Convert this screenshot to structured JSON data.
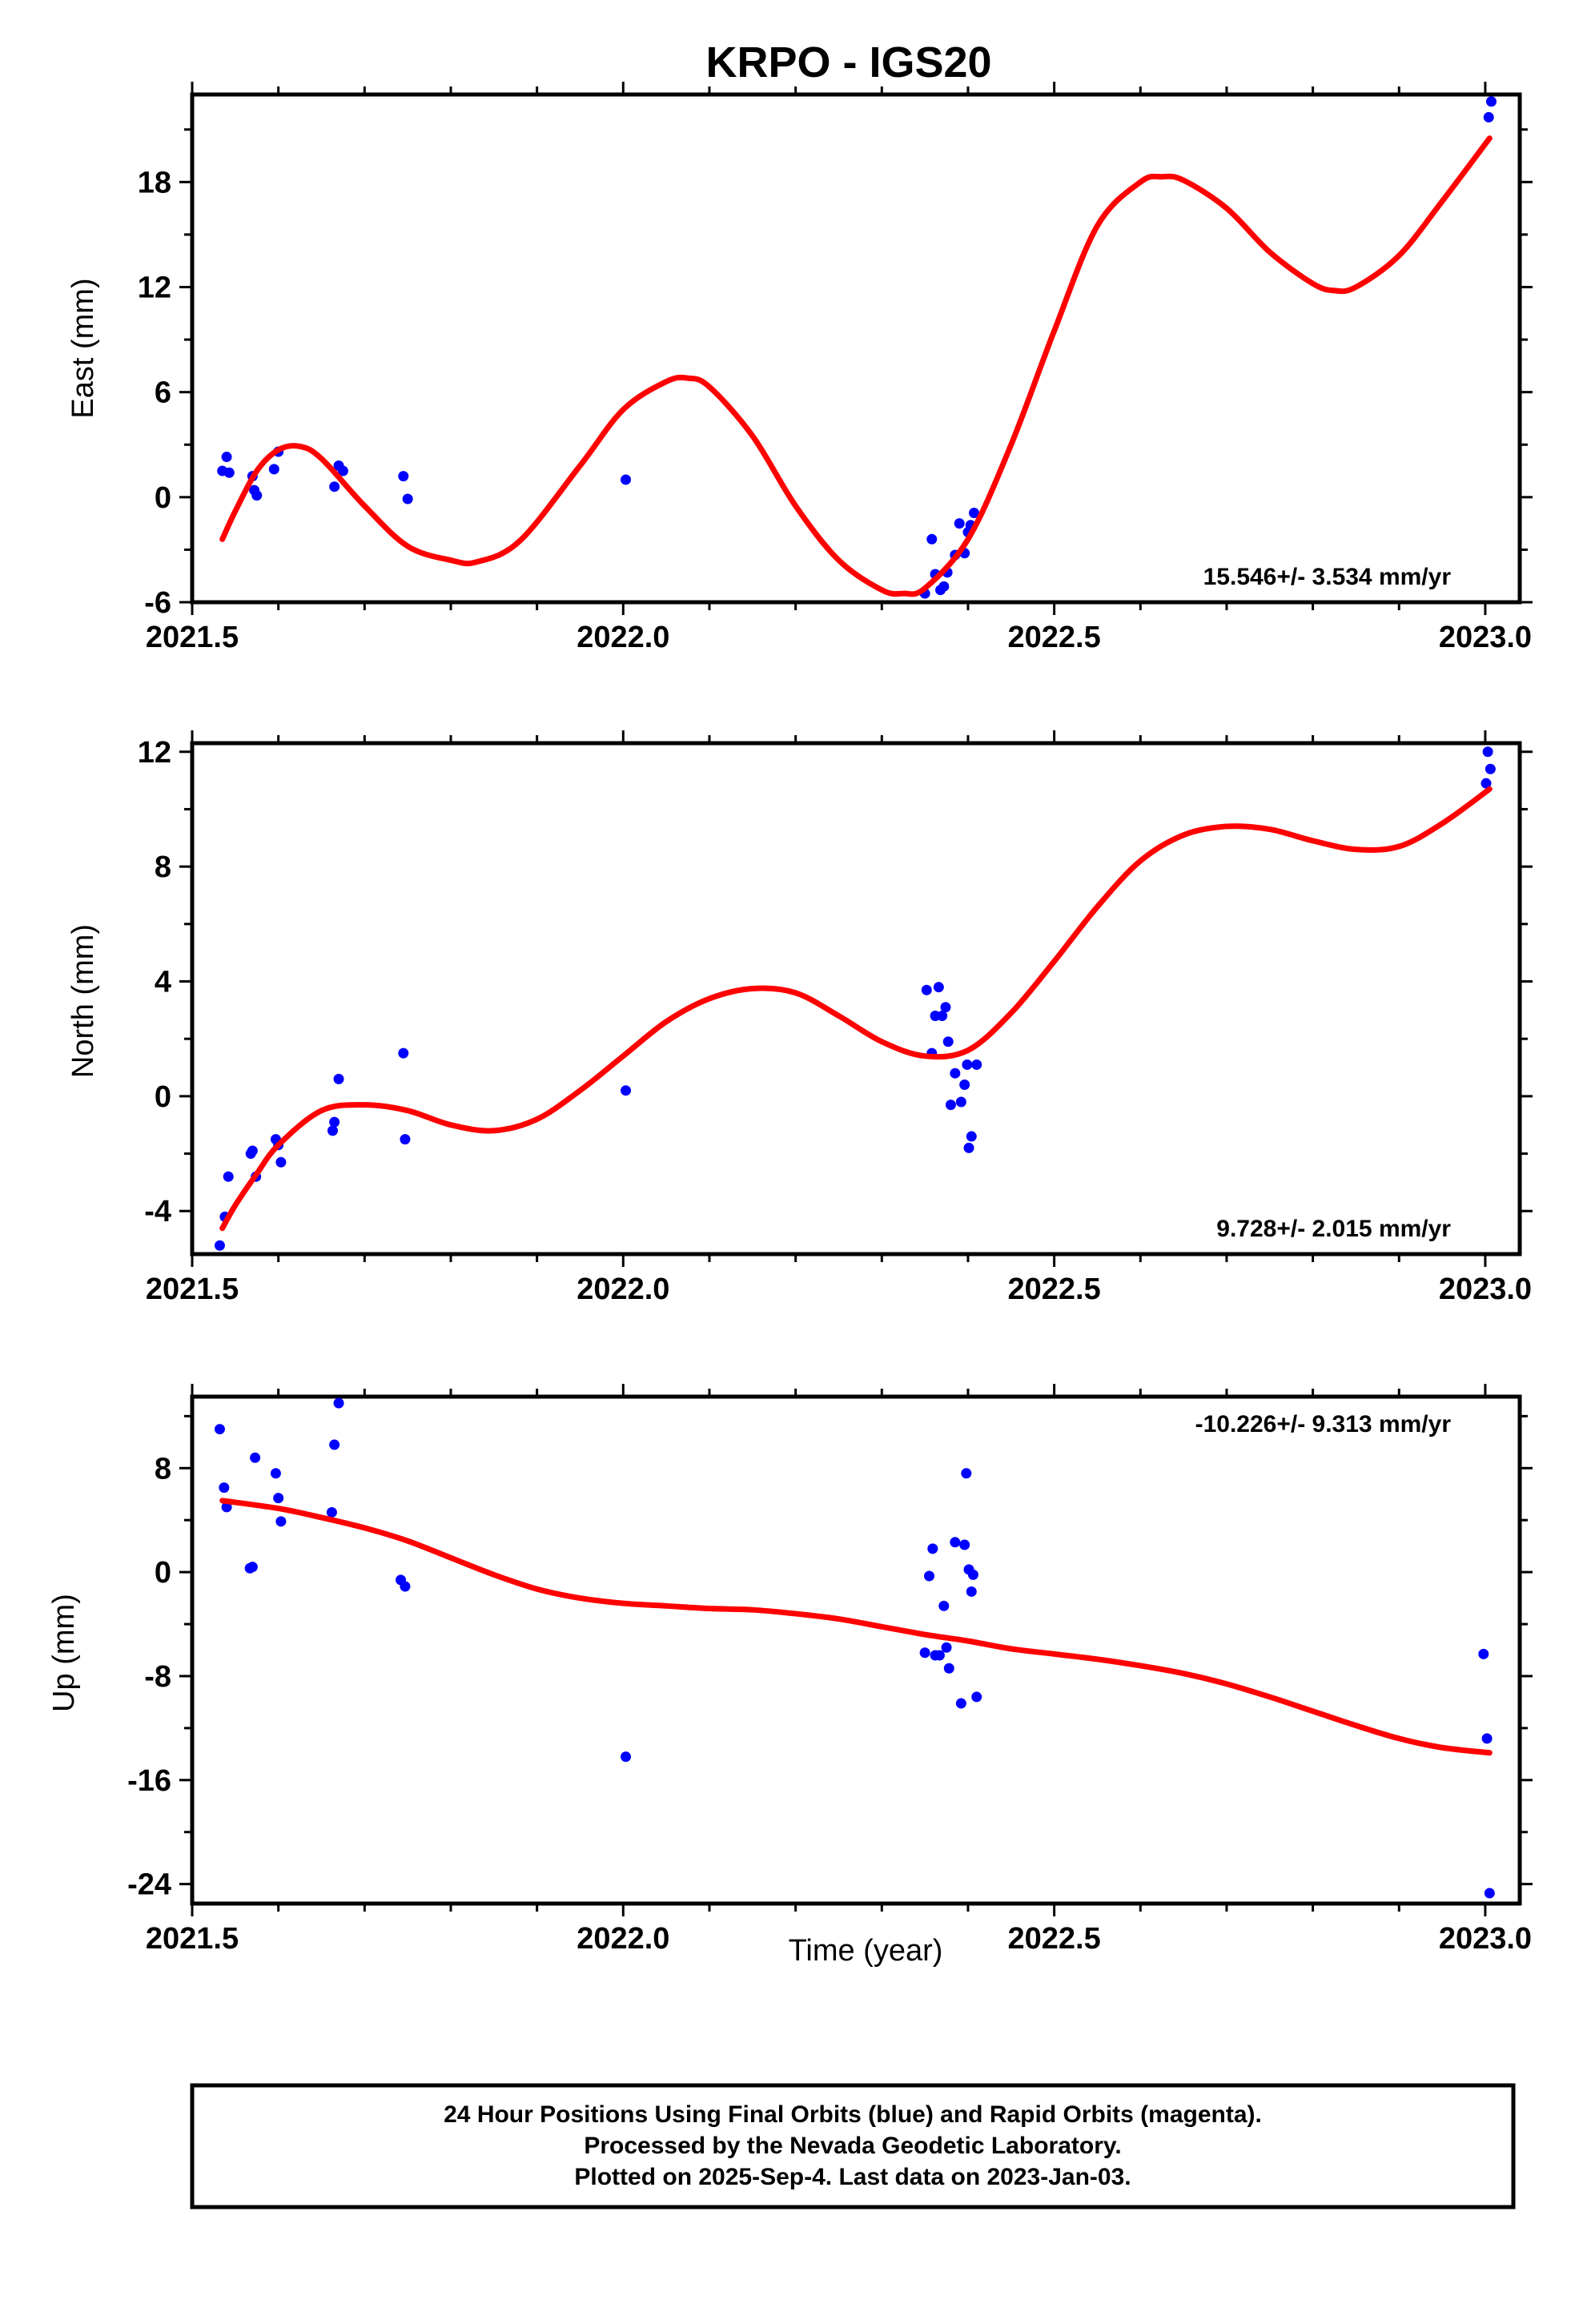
{
  "title": "KRPO - IGS20",
  "footer": {
    "lines": [
      "24 Hour Positions Using Final Orbits (blue) and Rapid Orbits (magenta).",
      "Processed by the Nevada Geodetic Laboratory.",
      "Plotted on 2025-Sep-4. Last data on 2023-Jan-03."
    ]
  },
  "colors": {
    "points": "#0000ff",
    "fit": "#ff0000",
    "axis": "#000000"
  },
  "chart_data": [
    {
      "type": "scatter",
      "ylabel": "East (mm)",
      "xlabel": "",
      "xlim": [
        2021.5,
        2023.04
      ],
      "ylim": [
        -6,
        23
      ],
      "xticks": [
        "2021.5",
        "2022.0",
        "2022.5",
        "2023.0"
      ],
      "yticks": [
        "-6",
        "0",
        "6",
        "12",
        "18"
      ],
      "rate_label": "15.546+/- 3.534 mm/yr",
      "rate_position": "bottom-right",
      "points": [
        [
          2021.535,
          1.5
        ],
        [
          2021.54,
          2.3
        ],
        [
          2021.543,
          1.4
        ],
        [
          2021.57,
          1.2
        ],
        [
          2021.572,
          0.4
        ],
        [
          2021.575,
          0.1
        ],
        [
          2021.595,
          1.6
        ],
        [
          2021.6,
          2.6
        ],
        [
          2021.665,
          0.6
        ],
        [
          2021.67,
          1.8
        ],
        [
          2021.675,
          1.5
        ],
        [
          2021.745,
          1.2
        ],
        [
          2021.75,
          -0.1
        ],
        [
          2022.003,
          1.0
        ],
        [
          2022.35,
          -5.5
        ],
        [
          2022.358,
          -2.4
        ],
        [
          2022.362,
          -4.4
        ],
        [
          2022.368,
          -5.3
        ],
        [
          2022.372,
          -5.1
        ],
        [
          2022.376,
          -4.3
        ],
        [
          2022.385,
          -3.3
        ],
        [
          2022.39,
          -1.5
        ],
        [
          2022.396,
          -3.2
        ],
        [
          2022.4,
          -2.0
        ],
        [
          2022.403,
          -1.6
        ],
        [
          2022.407,
          -0.9
        ],
        [
          2023.001,
          23.3
        ],
        [
          2023.004,
          21.7
        ],
        [
          2023.007,
          22.6
        ]
      ],
      "fit": [
        [
          2021.535,
          -2.4
        ],
        [
          2021.55,
          -0.8
        ],
        [
          2021.575,
          1.5
        ],
        [
          2021.6,
          2.7
        ],
        [
          2021.625,
          2.9
        ],
        [
          2021.65,
          2.2
        ],
        [
          2021.7,
          -0.5
        ],
        [
          2021.75,
          -2.8
        ],
        [
          2021.8,
          -3.6
        ],
        [
          2021.83,
          -3.7
        ],
        [
          2021.88,
          -2.5
        ],
        [
          2021.95,
          1.8
        ],
        [
          2022.0,
          5.0
        ],
        [
          2022.05,
          6.6
        ],
        [
          2022.075,
          6.8
        ],
        [
          2022.1,
          6.3
        ],
        [
          2022.15,
          3.5
        ],
        [
          2022.2,
          -0.5
        ],
        [
          2022.25,
          -3.6
        ],
        [
          2022.3,
          -5.3
        ],
        [
          2022.325,
          -5.5
        ],
        [
          2022.35,
          -5.2
        ],
        [
          2022.4,
          -2.4
        ],
        [
          2022.45,
          3.0
        ],
        [
          2022.5,
          9.5
        ],
        [
          2022.55,
          15.5
        ],
        [
          2022.6,
          18.0
        ],
        [
          2022.625,
          18.3
        ],
        [
          2022.65,
          18.1
        ],
        [
          2022.7,
          16.5
        ],
        [
          2022.75,
          14.0
        ],
        [
          2022.8,
          12.2
        ],
        [
          2022.825,
          11.8
        ],
        [
          2022.85,
          12.0
        ],
        [
          2022.9,
          13.8
        ],
        [
          2022.95,
          16.9
        ],
        [
          2023.005,
          20.5
        ]
      ]
    },
    {
      "type": "scatter",
      "ylabel": "North (mm)",
      "xlabel": "",
      "xlim": [
        2021.5,
        2023.04
      ],
      "ylim": [
        -5.5,
        12.3
      ],
      "xticks": [
        "2021.5",
        "2022.0",
        "2022.5",
        "2023.0"
      ],
      "yticks": [
        "-4",
        "0",
        "4",
        "8",
        "12"
      ],
      "rate_label": "9.728+/- 2.015 mm/yr",
      "rate_position": "bottom-right",
      "points": [
        [
          2021.532,
          -5.2
        ],
        [
          2021.538,
          -4.2
        ],
        [
          2021.542,
          -2.8
        ],
        [
          2021.568,
          -2.0
        ],
        [
          2021.57,
          -1.9
        ],
        [
          2021.574,
          -2.8
        ],
        [
          2021.597,
          -1.5
        ],
        [
          2021.6,
          -1.7
        ],
        [
          2021.603,
          -2.3
        ],
        [
          2021.663,
          -1.2
        ],
        [
          2021.665,
          -0.9
        ],
        [
          2021.67,
          0.6
        ],
        [
          2021.745,
          1.5
        ],
        [
          2021.747,
          -1.5
        ],
        [
          2022.003,
          0.2
        ],
        [
          2022.352,
          3.7
        ],
        [
          2022.358,
          1.5
        ],
        [
          2022.362,
          2.8
        ],
        [
          2022.366,
          3.8
        ],
        [
          2022.37,
          2.8
        ],
        [
          2022.374,
          3.1
        ],
        [
          2022.377,
          1.9
        ],
        [
          2022.38,
          -0.3
        ],
        [
          2022.385,
          0.8
        ],
        [
          2022.392,
          -0.2
        ],
        [
          2022.396,
          0.4
        ],
        [
          2022.399,
          1.1
        ],
        [
          2022.401,
          -1.8
        ],
        [
          2022.404,
          -1.4
        ],
        [
          2022.41,
          1.1
        ],
        [
          2023.001,
          10.9
        ],
        [
          2023.003,
          12.0
        ],
        [
          2023.006,
          11.4
        ]
      ],
      "fit": [
        [
          2021.535,
          -4.6
        ],
        [
          2021.55,
          -3.8
        ],
        [
          2021.575,
          -2.7
        ],
        [
          2021.6,
          -1.7
        ],
        [
          2021.65,
          -0.5
        ],
        [
          2021.7,
          -0.3
        ],
        [
          2021.75,
          -0.5
        ],
        [
          2021.8,
          -1.0
        ],
        [
          2021.85,
          -1.2
        ],
        [
          2021.9,
          -0.8
        ],
        [
          2021.95,
          0.2
        ],
        [
          2022.0,
          1.4
        ],
        [
          2022.05,
          2.6
        ],
        [
          2022.1,
          3.4
        ],
        [
          2022.15,
          3.75
        ],
        [
          2022.2,
          3.6
        ],
        [
          2022.25,
          2.8
        ],
        [
          2022.3,
          1.9
        ],
        [
          2022.35,
          1.4
        ],
        [
          2022.4,
          1.6
        ],
        [
          2022.45,
          2.9
        ],
        [
          2022.5,
          4.7
        ],
        [
          2022.55,
          6.6
        ],
        [
          2022.6,
          8.2
        ],
        [
          2022.65,
          9.1
        ],
        [
          2022.7,
          9.4
        ],
        [
          2022.75,
          9.3
        ],
        [
          2022.8,
          8.9
        ],
        [
          2022.85,
          8.6
        ],
        [
          2022.9,
          8.7
        ],
        [
          2022.95,
          9.5
        ],
        [
          2023.005,
          10.7
        ]
      ]
    },
    {
      "type": "scatter",
      "ylabel": "Up (mm)",
      "xlabel": "Time (year)",
      "xlim": [
        2021.5,
        2023.04
      ],
      "ylim": [
        -25.5,
        13.5
      ],
      "xticks": [
        "2021.5",
        "2022.0",
        "2022.5",
        "2023.0"
      ],
      "yticks": [
        "-24",
        "-16",
        "-8",
        "0",
        "8"
      ],
      "rate_label": "-10.226+/- 9.313 mm/yr",
      "rate_position": "top-right",
      "points": [
        [
          2021.532,
          11.0
        ],
        [
          2021.537,
          6.5
        ],
        [
          2021.54,
          5.0
        ],
        [
          2021.567,
          0.3
        ],
        [
          2021.57,
          0.4
        ],
        [
          2021.573,
          8.8
        ],
        [
          2021.597,
          7.6
        ],
        [
          2021.6,
          5.7
        ],
        [
          2021.603,
          3.9
        ],
        [
          2021.662,
          4.6
        ],
        [
          2021.665,
          9.8
        ],
        [
          2021.67,
          13.0
        ],
        [
          2021.742,
          -0.6
        ],
        [
          2021.747,
          -1.1
        ],
        [
          2022.003,
          -14.2
        ],
        [
          2022.35,
          -6.2
        ],
        [
          2022.355,
          -0.3
        ],
        [
          2022.359,
          1.8
        ],
        [
          2022.362,
          -6.4
        ],
        [
          2022.367,
          -6.4
        ],
        [
          2022.372,
          -2.6
        ],
        [
          2022.375,
          -5.8
        ],
        [
          2022.378,
          -7.4
        ],
        [
          2022.385,
          2.3
        ],
        [
          2022.392,
          -10.1
        ],
        [
          2022.396,
          2.1
        ],
        [
          2022.398,
          7.6
        ],
        [
          2022.401,
          0.2
        ],
        [
          2022.404,
          -1.5
        ],
        [
          2022.406,
          -0.2
        ],
        [
          2022.41,
          -9.6
        ],
        [
          2022.998,
          -6.3
        ],
        [
          2023.002,
          -12.8
        ],
        [
          2023.005,
          -24.7
        ]
      ],
      "fit": [
        [
          2021.535,
          5.5
        ],
        [
          2021.6,
          4.9
        ],
        [
          2021.65,
          4.2
        ],
        [
          2021.7,
          3.4
        ],
        [
          2021.75,
          2.4
        ],
        [
          2021.8,
          1.1
        ],
        [
          2021.85,
          -0.2
        ],
        [
          2021.9,
          -1.3
        ],
        [
          2021.95,
          -2.0
        ],
        [
          2022.0,
          -2.4
        ],
        [
          2022.05,
          -2.6
        ],
        [
          2022.1,
          -2.8
        ],
        [
          2022.15,
          -2.9
        ],
        [
          2022.2,
          -3.2
        ],
        [
          2022.25,
          -3.6
        ],
        [
          2022.3,
          -4.2
        ],
        [
          2022.35,
          -4.8
        ],
        [
          2022.4,
          -5.3
        ],
        [
          2022.45,
          -5.9
        ],
        [
          2022.5,
          -6.3
        ],
        [
          2022.55,
          -6.7
        ],
        [
          2022.6,
          -7.2
        ],
        [
          2022.65,
          -7.8
        ],
        [
          2022.7,
          -8.6
        ],
        [
          2022.75,
          -9.6
        ],
        [
          2022.8,
          -10.7
        ],
        [
          2022.85,
          -11.8
        ],
        [
          2022.9,
          -12.8
        ],
        [
          2022.95,
          -13.5
        ],
        [
          2023.005,
          -13.9
        ]
      ]
    }
  ]
}
